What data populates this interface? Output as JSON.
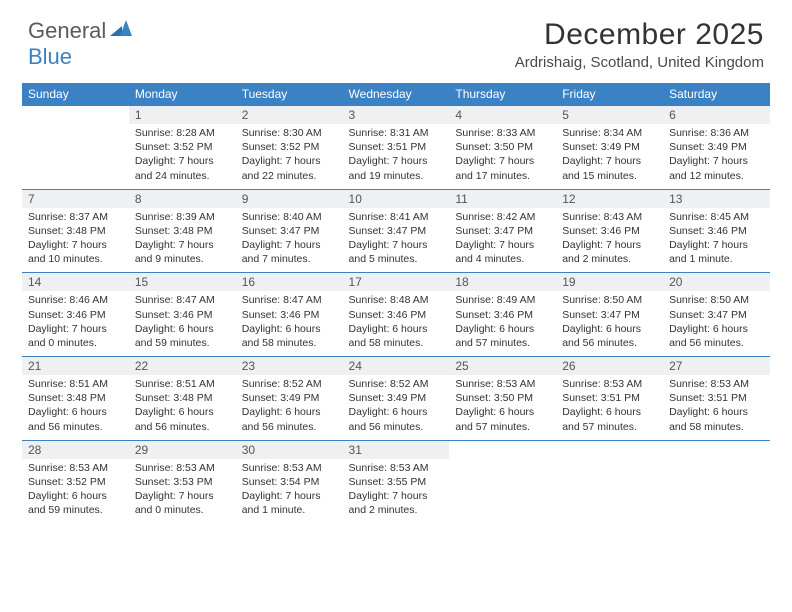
{
  "brand": {
    "part1": "General",
    "part2": "Blue"
  },
  "title": "December 2025",
  "location": "Ardrishaig, Scotland, United Kingdom",
  "colors": {
    "header_bg": "#3b82c4",
    "header_fg": "#ffffff",
    "daynum_bg": "#eef0f2",
    "rule": "#3b82c4",
    "text": "#333333"
  },
  "typography": {
    "title_fontsize": 30,
    "location_fontsize": 15,
    "weekday_fontsize": 12,
    "cell_fontsize": 10.5
  },
  "weekdays": [
    "Sunday",
    "Monday",
    "Tuesday",
    "Wednesday",
    "Thursday",
    "Friday",
    "Saturday"
  ],
  "weeks": [
    {
      "nums": [
        "",
        "1",
        "2",
        "3",
        "4",
        "5",
        "6"
      ],
      "cells": [
        {
          "empty": true
        },
        {
          "sunrise": "Sunrise: 8:28 AM",
          "sunset": "Sunset: 3:52 PM",
          "day1": "Daylight: 7 hours",
          "day2": "and 24 minutes."
        },
        {
          "sunrise": "Sunrise: 8:30 AM",
          "sunset": "Sunset: 3:52 PM",
          "day1": "Daylight: 7 hours",
          "day2": "and 22 minutes."
        },
        {
          "sunrise": "Sunrise: 8:31 AM",
          "sunset": "Sunset: 3:51 PM",
          "day1": "Daylight: 7 hours",
          "day2": "and 19 minutes."
        },
        {
          "sunrise": "Sunrise: 8:33 AM",
          "sunset": "Sunset: 3:50 PM",
          "day1": "Daylight: 7 hours",
          "day2": "and 17 minutes."
        },
        {
          "sunrise": "Sunrise: 8:34 AM",
          "sunset": "Sunset: 3:49 PM",
          "day1": "Daylight: 7 hours",
          "day2": "and 15 minutes."
        },
        {
          "sunrise": "Sunrise: 8:36 AM",
          "sunset": "Sunset: 3:49 PM",
          "day1": "Daylight: 7 hours",
          "day2": "and 12 minutes."
        }
      ]
    },
    {
      "nums": [
        "7",
        "8",
        "9",
        "10",
        "11",
        "12",
        "13"
      ],
      "cells": [
        {
          "sunrise": "Sunrise: 8:37 AM",
          "sunset": "Sunset: 3:48 PM",
          "day1": "Daylight: 7 hours",
          "day2": "and 10 minutes."
        },
        {
          "sunrise": "Sunrise: 8:39 AM",
          "sunset": "Sunset: 3:48 PM",
          "day1": "Daylight: 7 hours",
          "day2": "and 9 minutes."
        },
        {
          "sunrise": "Sunrise: 8:40 AM",
          "sunset": "Sunset: 3:47 PM",
          "day1": "Daylight: 7 hours",
          "day2": "and 7 minutes."
        },
        {
          "sunrise": "Sunrise: 8:41 AM",
          "sunset": "Sunset: 3:47 PM",
          "day1": "Daylight: 7 hours",
          "day2": "and 5 minutes."
        },
        {
          "sunrise": "Sunrise: 8:42 AM",
          "sunset": "Sunset: 3:47 PM",
          "day1": "Daylight: 7 hours",
          "day2": "and 4 minutes."
        },
        {
          "sunrise": "Sunrise: 8:43 AM",
          "sunset": "Sunset: 3:46 PM",
          "day1": "Daylight: 7 hours",
          "day2": "and 2 minutes."
        },
        {
          "sunrise": "Sunrise: 8:45 AM",
          "sunset": "Sunset: 3:46 PM",
          "day1": "Daylight: 7 hours",
          "day2": "and 1 minute."
        }
      ]
    },
    {
      "nums": [
        "14",
        "15",
        "16",
        "17",
        "18",
        "19",
        "20"
      ],
      "cells": [
        {
          "sunrise": "Sunrise: 8:46 AM",
          "sunset": "Sunset: 3:46 PM",
          "day1": "Daylight: 7 hours",
          "day2": "and 0 minutes."
        },
        {
          "sunrise": "Sunrise: 8:47 AM",
          "sunset": "Sunset: 3:46 PM",
          "day1": "Daylight: 6 hours",
          "day2": "and 59 minutes."
        },
        {
          "sunrise": "Sunrise: 8:47 AM",
          "sunset": "Sunset: 3:46 PM",
          "day1": "Daylight: 6 hours",
          "day2": "and 58 minutes."
        },
        {
          "sunrise": "Sunrise: 8:48 AM",
          "sunset": "Sunset: 3:46 PM",
          "day1": "Daylight: 6 hours",
          "day2": "and 58 minutes."
        },
        {
          "sunrise": "Sunrise: 8:49 AM",
          "sunset": "Sunset: 3:46 PM",
          "day1": "Daylight: 6 hours",
          "day2": "and 57 minutes."
        },
        {
          "sunrise": "Sunrise: 8:50 AM",
          "sunset": "Sunset: 3:47 PM",
          "day1": "Daylight: 6 hours",
          "day2": "and 56 minutes."
        },
        {
          "sunrise": "Sunrise: 8:50 AM",
          "sunset": "Sunset: 3:47 PM",
          "day1": "Daylight: 6 hours",
          "day2": "and 56 minutes."
        }
      ]
    },
    {
      "nums": [
        "21",
        "22",
        "23",
        "24",
        "25",
        "26",
        "27"
      ],
      "cells": [
        {
          "sunrise": "Sunrise: 8:51 AM",
          "sunset": "Sunset: 3:48 PM",
          "day1": "Daylight: 6 hours",
          "day2": "and 56 minutes."
        },
        {
          "sunrise": "Sunrise: 8:51 AM",
          "sunset": "Sunset: 3:48 PM",
          "day1": "Daylight: 6 hours",
          "day2": "and 56 minutes."
        },
        {
          "sunrise": "Sunrise: 8:52 AM",
          "sunset": "Sunset: 3:49 PM",
          "day1": "Daylight: 6 hours",
          "day2": "and 56 minutes."
        },
        {
          "sunrise": "Sunrise: 8:52 AM",
          "sunset": "Sunset: 3:49 PM",
          "day1": "Daylight: 6 hours",
          "day2": "and 56 minutes."
        },
        {
          "sunrise": "Sunrise: 8:53 AM",
          "sunset": "Sunset: 3:50 PM",
          "day1": "Daylight: 6 hours",
          "day2": "and 57 minutes."
        },
        {
          "sunrise": "Sunrise: 8:53 AM",
          "sunset": "Sunset: 3:51 PM",
          "day1": "Daylight: 6 hours",
          "day2": "and 57 minutes."
        },
        {
          "sunrise": "Sunrise: 8:53 AM",
          "sunset": "Sunset: 3:51 PM",
          "day1": "Daylight: 6 hours",
          "day2": "and 58 minutes."
        }
      ]
    },
    {
      "nums": [
        "28",
        "29",
        "30",
        "31",
        "",
        "",
        ""
      ],
      "cells": [
        {
          "sunrise": "Sunrise: 8:53 AM",
          "sunset": "Sunset: 3:52 PM",
          "day1": "Daylight: 6 hours",
          "day2": "and 59 minutes."
        },
        {
          "sunrise": "Sunrise: 8:53 AM",
          "sunset": "Sunset: 3:53 PM",
          "day1": "Daylight: 7 hours",
          "day2": "and 0 minutes."
        },
        {
          "sunrise": "Sunrise: 8:53 AM",
          "sunset": "Sunset: 3:54 PM",
          "day1": "Daylight: 7 hours",
          "day2": "and 1 minute."
        },
        {
          "sunrise": "Sunrise: 8:53 AM",
          "sunset": "Sunset: 3:55 PM",
          "day1": "Daylight: 7 hours",
          "day2": "and 2 minutes."
        },
        {
          "empty": true
        },
        {
          "empty": true
        },
        {
          "empty": true
        }
      ]
    }
  ]
}
